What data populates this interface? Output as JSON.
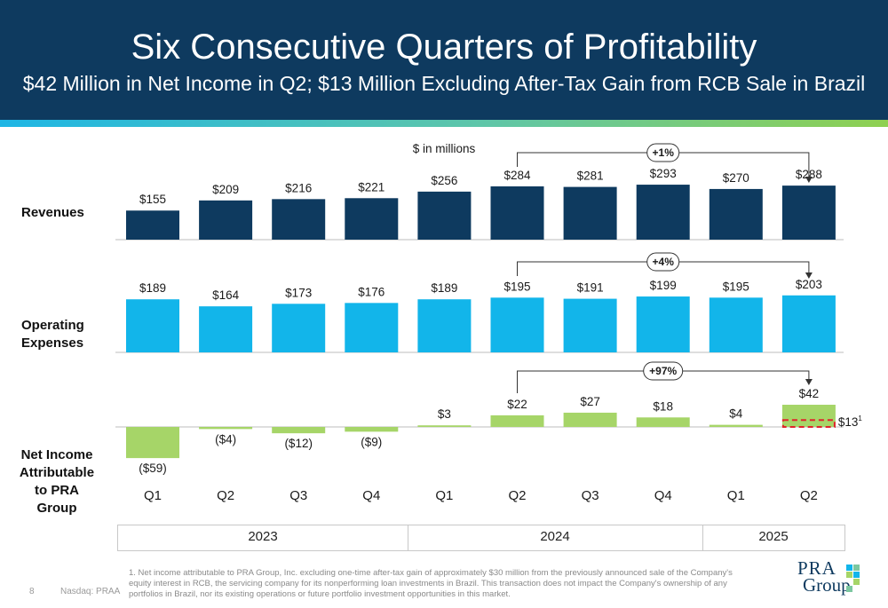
{
  "header": {
    "title": "Six Consecutive Quarters of Profitability",
    "subtitle": "$42 Million in Net Income in Q2; $13 Million Excluding After-Tax Gain from RCB Sale in Brazil"
  },
  "colors": {
    "header_bg": "#0e3a5f",
    "revenues": "#0e3a5f",
    "operating_expenses": "#12b5ea",
    "net_income": "#a6d568",
    "adjusted_outline": "#e0242b"
  },
  "chart_data": {
    "type": "bar",
    "unit_note": "$ in millions",
    "categories": [
      "Q1",
      "Q2",
      "Q3",
      "Q4",
      "Q1",
      "Q2",
      "Q3",
      "Q4",
      "Q1",
      "Q2"
    ],
    "years": [
      {
        "label": "2023",
        "quarters": 4
      },
      {
        "label": "2024",
        "quarters": 4
      },
      {
        "label": "2025",
        "quarters": 2
      }
    ],
    "series": [
      {
        "name": "Revenues",
        "values": [
          155,
          209,
          216,
          221,
          256,
          284,
          281,
          293,
          270,
          288
        ],
        "labels": [
          "$155",
          "$209",
          "$216",
          "$221",
          "$256",
          "$284",
          "$281",
          "$293",
          "$270",
          "$288"
        ],
        "comparison": {
          "from": 5,
          "to": 9,
          "label": "+1%"
        }
      },
      {
        "name": "Operating Expenses",
        "display_name": [
          "Operating",
          "Expenses"
        ],
        "values": [
          189,
          164,
          173,
          176,
          189,
          195,
          191,
          199,
          195,
          203
        ],
        "labels": [
          "$189",
          "$164",
          "$173",
          "$176",
          "$189",
          "$195",
          "$191",
          "$199",
          "$195",
          "$203"
        ],
        "comparison": {
          "from": 5,
          "to": 9,
          "label": "+4%"
        }
      },
      {
        "name": "Net Income Attributable to PRA Group",
        "display_name": [
          "Net Income",
          "Attributable",
          "to PRA",
          "Group"
        ],
        "values": [
          -59,
          -4,
          -12,
          -9,
          3,
          22,
          27,
          18,
          4,
          42
        ],
        "labels": [
          "($59)",
          "($4)",
          "($12)",
          "($9)",
          "$3",
          "$22",
          "$27",
          "$18",
          "$4",
          "$42"
        ],
        "comparison": {
          "from": 5,
          "to": 9,
          "label": "+97%"
        },
        "adjusted": {
          "index": 9,
          "value": 13,
          "label": "$13",
          "footnote_ref": "1"
        }
      }
    ],
    "legend": "none",
    "grid": false
  },
  "footer": {
    "page_number": "8",
    "ticker": "Nasdaq: PRAA",
    "footnote": "1. Net income attributable to PRA Group, Inc. excluding one-time after-tax gain of approximately $30 million from the previously announced sale of the Company's equity interest in RCB, the servicing company for its nonperforming loan investments in Brazil. This transaction does not impact the Company's ownership of any portfolios in Brazil, nor its existing operations or future portfolio investment opportunities in this market.",
    "logo_line1": "PRA",
    "logo_line2": "Group"
  }
}
